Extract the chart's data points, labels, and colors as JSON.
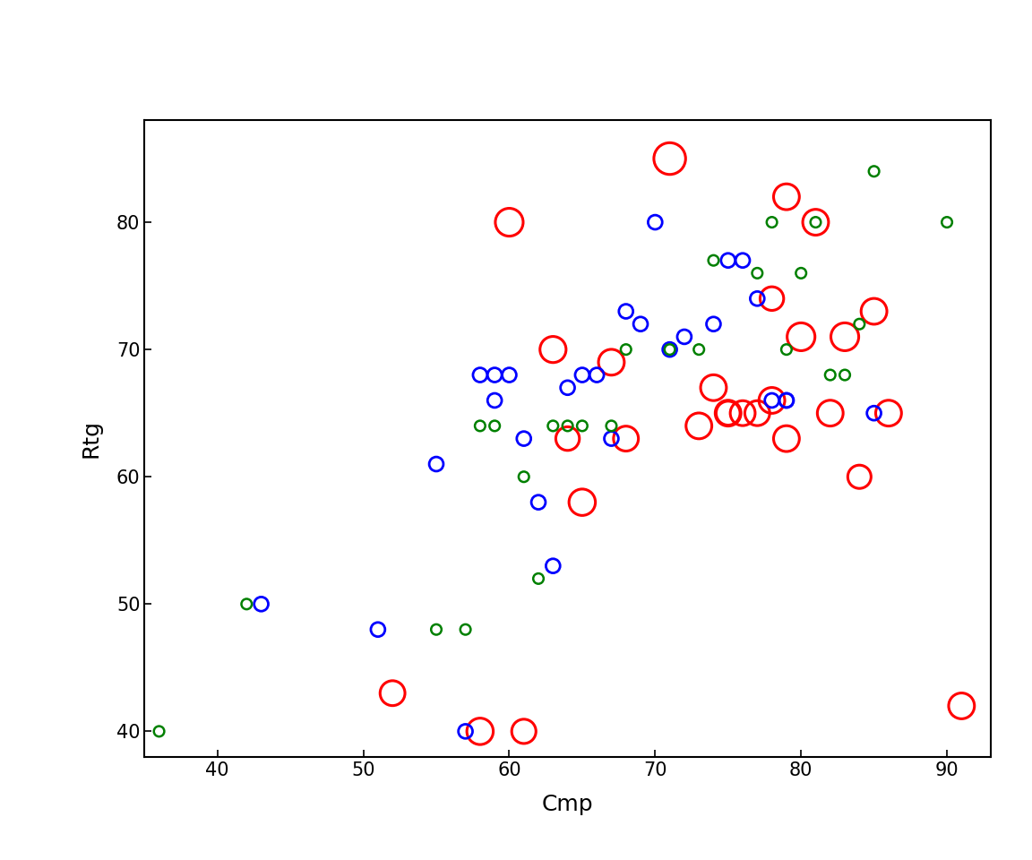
{
  "xlabel": "Cmp",
  "ylabel": "Rtg",
  "xlim": [
    35,
    93
  ],
  "ylim": [
    38,
    88
  ],
  "xticks": [
    40,
    50,
    60,
    70,
    80,
    90
  ],
  "yticks": [
    40,
    50,
    60,
    70,
    80
  ],
  "background_color": "#ffffff",
  "red_points": {
    "x": [
      52,
      58,
      60,
      61,
      63,
      64,
      65,
      67,
      68,
      71,
      73,
      74,
      75,
      75,
      76,
      77,
      78,
      78,
      79,
      79,
      80,
      81,
      82,
      83,
      84,
      85,
      86,
      91
    ],
    "y": [
      43,
      40,
      80,
      40,
      70,
      63,
      58,
      69,
      63,
      85,
      64,
      67,
      65,
      65,
      65,
      65,
      74,
      66,
      82,
      63,
      71,
      80,
      65,
      71,
      60,
      73,
      65,
      42
    ],
    "size": [
      400,
      450,
      500,
      380,
      440,
      360,
      450,
      430,
      400,
      650,
      430,
      430,
      430,
      370,
      400,
      400,
      360,
      430,
      430,
      430,
      500,
      430,
      430,
      500,
      350,
      430,
      430,
      430
    ]
  },
  "blue_points": {
    "x": [
      43,
      51,
      55,
      57,
      58,
      59,
      59,
      60,
      61,
      62,
      63,
      64,
      65,
      66,
      67,
      68,
      69,
      70,
      71,
      72,
      74,
      75,
      76,
      77,
      78,
      79,
      79,
      85
    ],
    "y": [
      50,
      48,
      61,
      40,
      68,
      68,
      66,
      68,
      63,
      58,
      53,
      67,
      68,
      68,
      63,
      73,
      72,
      80,
      70,
      71,
      72,
      77,
      77,
      74,
      66,
      66,
      66,
      65
    ],
    "size": [
      130,
      130,
      130,
      130,
      130,
      130,
      130,
      130,
      130,
      130,
      130,
      130,
      130,
      130,
      130,
      130,
      130,
      130,
      130,
      130,
      130,
      130,
      130,
      130,
      130,
      130,
      130,
      130
    ]
  },
  "green_points": {
    "x": [
      36,
      42,
      55,
      57,
      58,
      59,
      61,
      62,
      63,
      64,
      65,
      67,
      68,
      71,
      73,
      74,
      77,
      78,
      79,
      80,
      81,
      82,
      83,
      84,
      85,
      90
    ],
    "y": [
      40,
      50,
      48,
      48,
      64,
      64,
      60,
      52,
      64,
      64,
      64,
      64,
      70,
      70,
      70,
      77,
      76,
      80,
      70,
      76,
      80,
      68,
      68,
      72,
      84,
      80
    ],
    "size": [
      70,
      70,
      70,
      70,
      70,
      70,
      70,
      70,
      70,
      70,
      70,
      70,
      70,
      70,
      70,
      70,
      70,
      70,
      70,
      70,
      70,
      70,
      70,
      70,
      70,
      70
    ]
  }
}
